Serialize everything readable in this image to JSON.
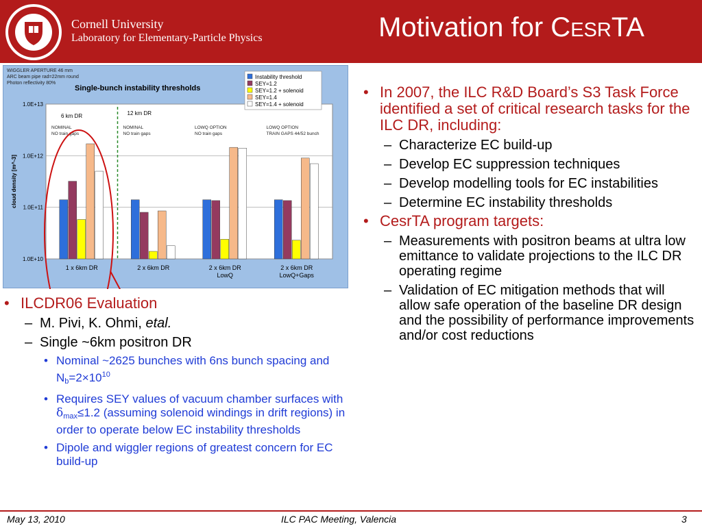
{
  "header": {
    "org_line1": "Cornell University",
    "org_line2": "Laboratory for Elementary-Particle Physics",
    "title_main": "Motivation for C",
    "title_smallcaps": "ESR",
    "title_end": "TA",
    "brand_color": "#b31b1b",
    "logo": "cornell-seal-icon"
  },
  "chart_data": {
    "type": "bar",
    "title": "Single-bunch instability thresholds",
    "notes": [
      "WIGGLER APERTURE 46 mm",
      "ARC beam pipe rad=22mm round",
      "Photon reflectivity 80%"
    ],
    "ylabel": "cloud density [m^-3]",
    "yscale": "log",
    "ylim": [
      10000000000.0,
      10000000000000.0
    ],
    "yticks": [
      "1.0E+10",
      "1.0E+11",
      "1.0E+12",
      "1.0E+13"
    ],
    "categories": [
      "1 x 6km DR",
      "2 x 6km DR",
      "2 x 6km DR\nLowQ",
      "2 x 6km DR\nLowQ+Gaps"
    ],
    "group_labels": [
      "6 km DR",
      "12 km DR"
    ],
    "category_notes": [
      "NOMINAL\nNO train gaps",
      "NOMINAL\nNO train gaps",
      "LOWQ OPTION\nNO train gaps",
      "LOWQ OPTION\nTRAIN GAPS 44/52 bunch"
    ],
    "legend_position": "top-right",
    "series": [
      {
        "name": "Instability threshold",
        "color": "#2e6fdb",
        "values": [
          140000000000.0,
          140000000000.0,
          140000000000.0,
          140000000000.0
        ]
      },
      {
        "name": "SEY=1.2",
        "color": "#943a5f",
        "values": [
          320000000000.0,
          80000000000.0,
          135000000000.0,
          135000000000.0
        ]
      },
      {
        "name": "SEY=1.2 + solenoid",
        "color": "#ffff00",
        "values": [
          58000000000.0,
          14000000000.0,
          24000000000.0,
          23000000000.0
        ]
      },
      {
        "name": "SEY=1.4",
        "color": "#f6b98a",
        "values": [
          1700000000000.0,
          85000000000.0,
          1450000000000.0,
          900000000000.0
        ]
      },
      {
        "name": "SEY=1.4 + solenoid",
        "color": "#ffffff",
        "values": [
          500000000000.0,
          18000000000.0,
          1400000000000.0,
          700000000000.0
        ]
      }
    ]
  },
  "right_column": {
    "bullets": [
      {
        "text": "In 2007, the ILC R&D Board’s S3 Task Force identified a set of critical research tasks for the ILC DR, including:",
        "subs": [
          "Characterize EC build-up",
          "Develop EC suppression techniques",
          "Develop modelling tools for EC instabilities",
          "Determine EC instability thresholds"
        ]
      },
      {
        "text": "CesrTA program targets:",
        "subs": [
          "Measurements with positron beams at ultra low emittance to validate projections to the ILC DR operating regime",
          "Validation of EC mitigation methods that will allow safe operation of the baseline DR design and the possibility of performance improvements and/or cost reductions"
        ]
      }
    ]
  },
  "left_column": {
    "heading": "ILCDR06 Evaluation",
    "sub1_prefix": "M. Pivi, K. Ohmi, ",
    "sub1_italic": "etal.",
    "sub2": "Single ~6km positron DR",
    "b1_text": "Nominal ~2625 bunches with 6ns bunch spacing and N",
    "b1_sub": "b",
    "b1_mid": "=2×10",
    "b1_sup": "10",
    "b2_pre": "Requires SEY values of vacuum chamber surfaces with ",
    "b2_delta": "δ",
    "b2_sub": "max",
    "b2_post": "≤1.2 (assuming solenoid windings in drift regions) in order to operate below EC instability thresholds",
    "b3": "Dipole and wiggler regions of greatest concern for EC build-up"
  },
  "footer": {
    "date": "May 13, 2010",
    "event": "ILC PAC Meeting, Valencia",
    "page": "3"
  }
}
